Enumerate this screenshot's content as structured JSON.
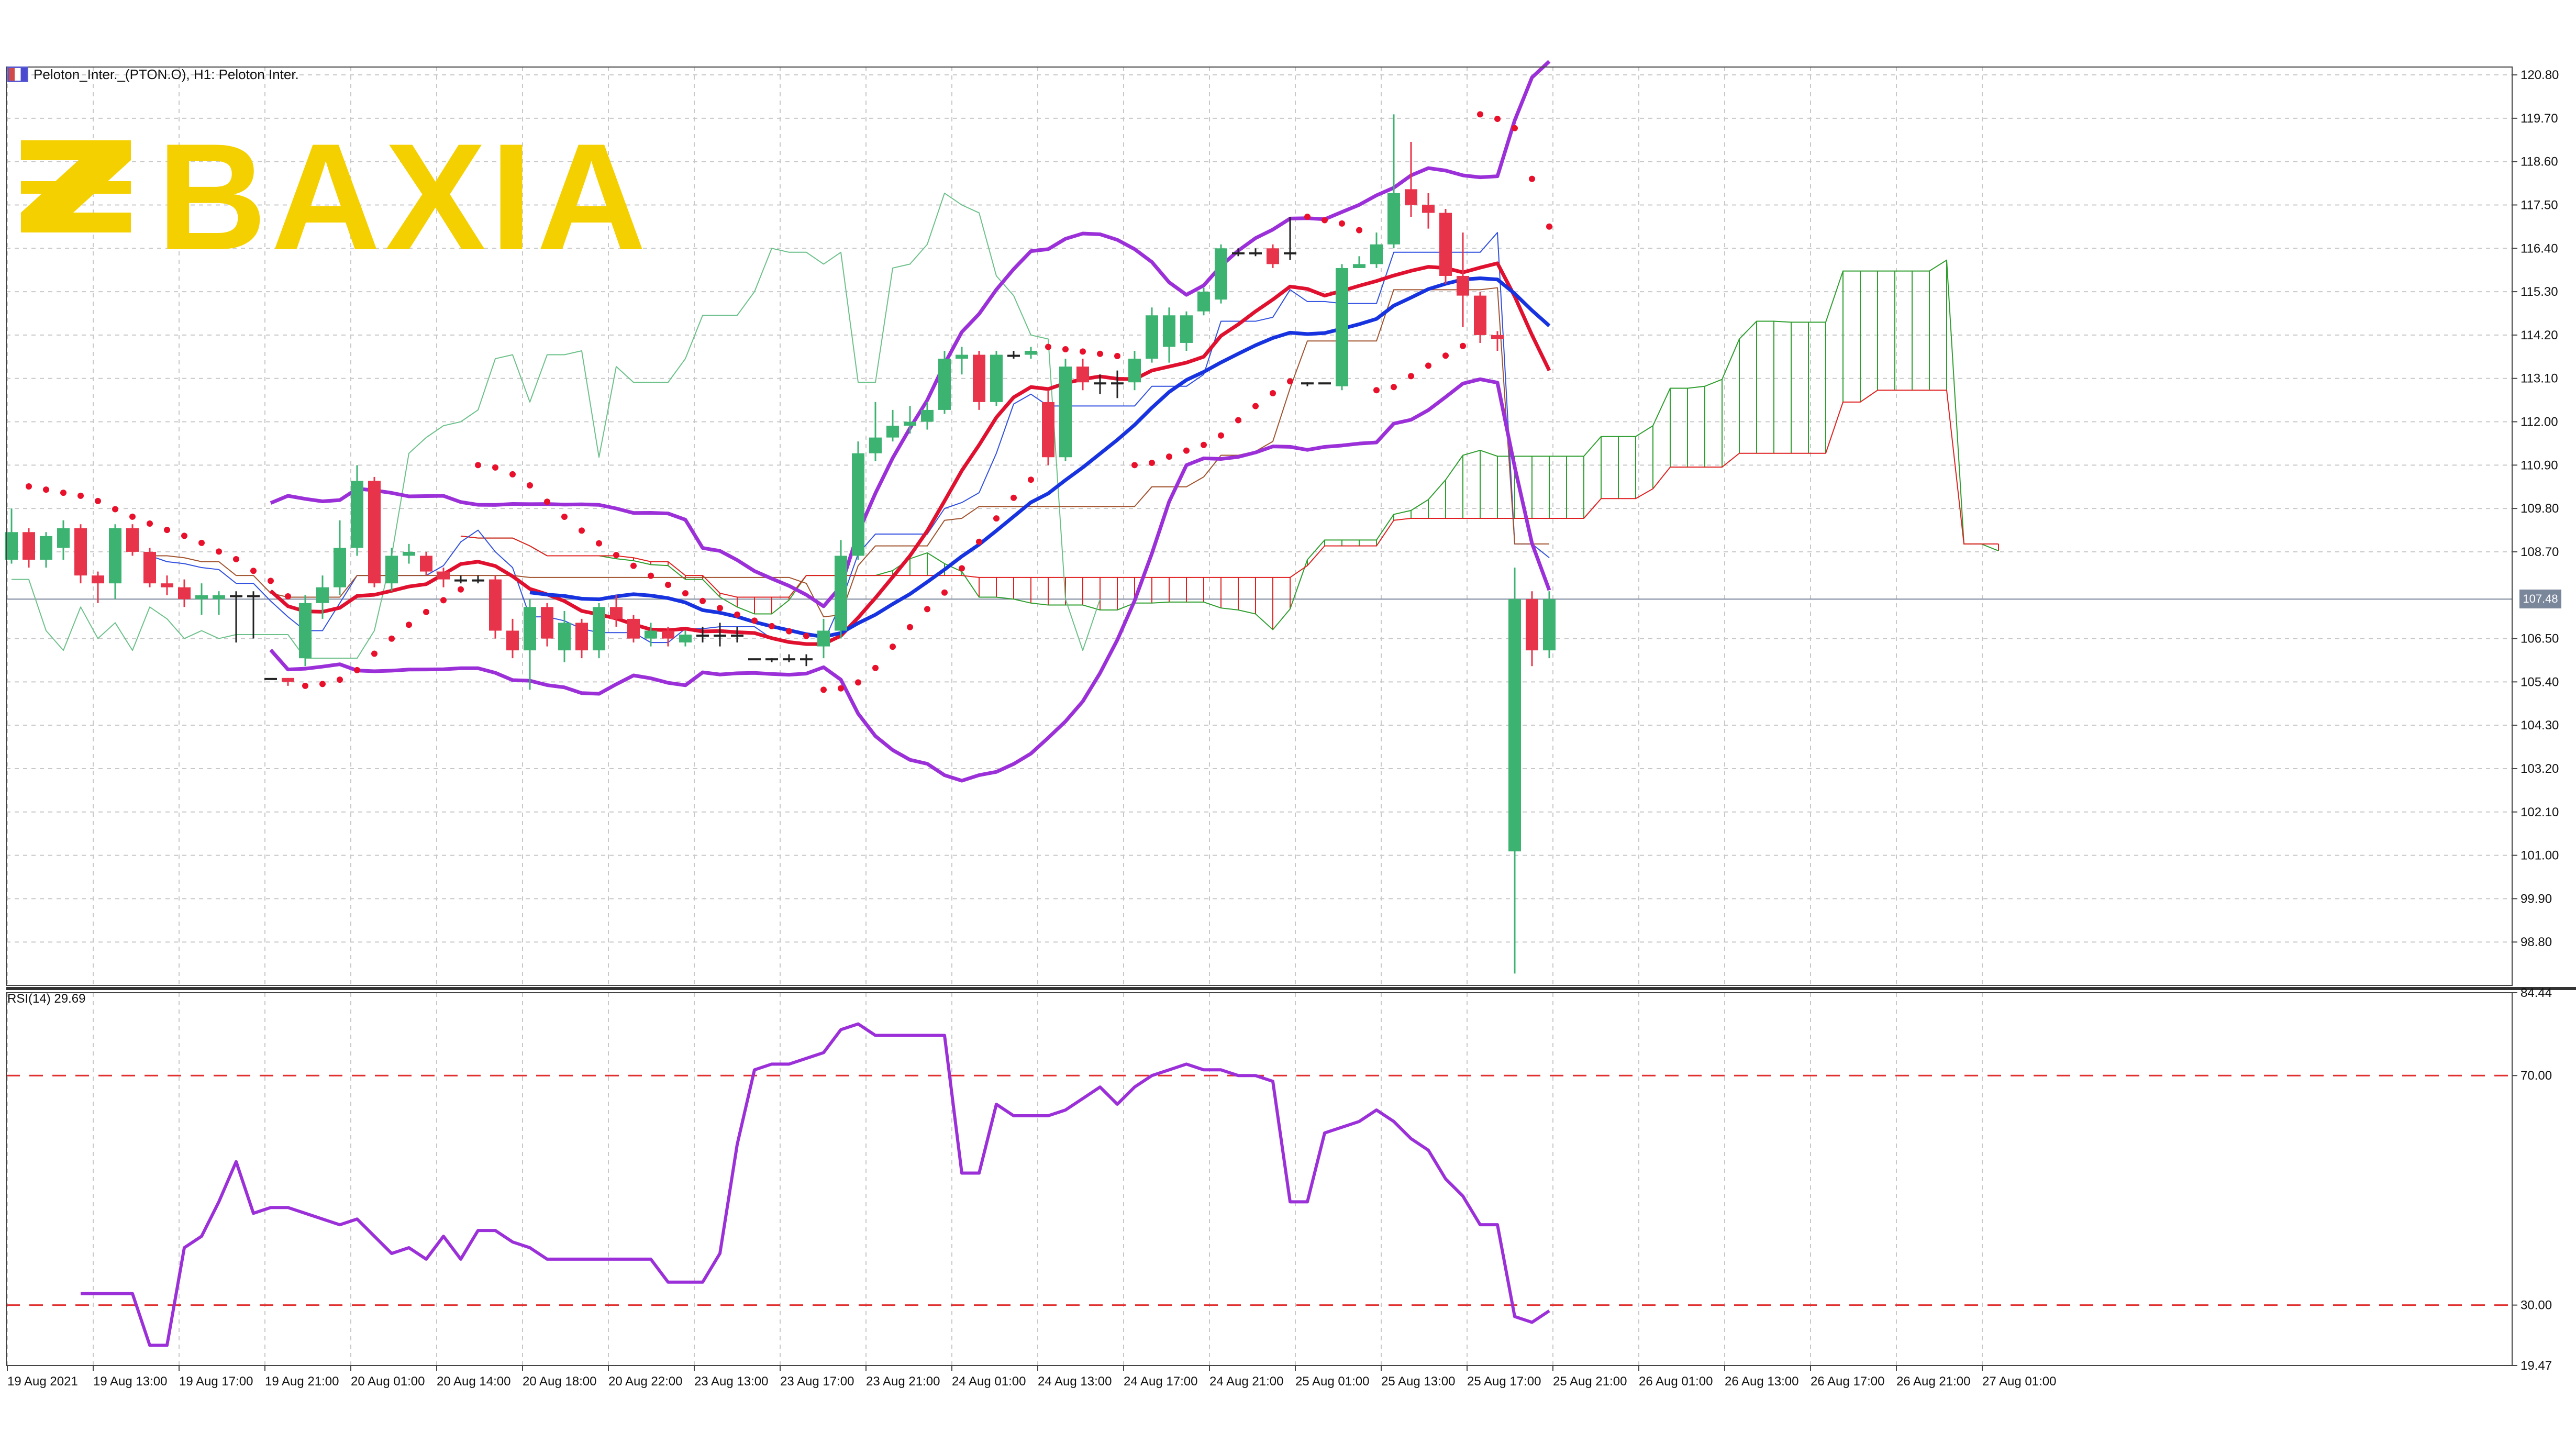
{
  "window": {
    "symbol_header": "Peloton_Inter._(PTON.O), H1:  Peloton Inter.",
    "rsi_label": "RSI(14) 29.69",
    "current_price_tag": "107.48"
  },
  "brand": {
    "logo_text": "BAXIA",
    "color": "#f5d000"
  },
  "colors": {
    "bull": "#3cb371",
    "bear": "#e8344a",
    "ma_red": "#e0102f",
    "ma_blue": "#1733e0",
    "bollinger": "#9b30d9",
    "kumo_green": "#2e9e2e",
    "kumo_red": "#e02020",
    "psar": "#e8102a",
    "rsi": "#9b30d9",
    "rsi_levels": "#e03030"
  },
  "chart_data": [
    {
      "type": "candlestick",
      "title": "Peloton_Inter._(PTON.O), H1:  Peloton Inter.",
      "ylim": [
        97.7,
        121.0
      ],
      "y_ticks": [
        "120.80",
        "119.70",
        "118.60",
        "117.50",
        "116.40",
        "115.30",
        "114.20",
        "113.10",
        "112.00",
        "110.90",
        "109.80",
        "108.70",
        "106.50",
        "105.40",
        "104.30",
        "103.20",
        "102.10",
        "101.00",
        "99.90",
        "98.80"
      ],
      "x_ticks": [
        "19 Aug 2021",
        "19 Aug 13:00",
        "19 Aug 17:00",
        "19 Aug 21:00",
        "20 Aug 01:00",
        "20 Aug 14:00",
        "20 Aug 18:00",
        "20 Aug 22:00",
        "23 Aug 13:00",
        "23 Aug 17:00",
        "23 Aug 21:00",
        "24 Aug 01:00",
        "24 Aug 13:00",
        "24 Aug 17:00",
        "24 Aug 21:00",
        "25 Aug 01:00",
        "25 Aug 13:00",
        "25 Aug 17:00",
        "25 Aug 21:00",
        "26 Aug 01:00",
        "26 Aug 13:00",
        "26 Aug 17:00",
        "26 Aug 21:00",
        "27 Aug 01:00"
      ],
      "candles": [
        [
          108.5,
          109.2,
          109.8,
          108.4
        ],
        [
          109.2,
          108.5,
          109.3,
          108.3
        ],
        [
          108.5,
          109.1,
          109.2,
          108.3
        ],
        [
          108.8,
          109.3,
          109.5,
          108.5
        ],
        [
          109.3,
          108.1,
          109.4,
          107.9
        ],
        [
          108.1,
          107.9,
          108.2,
          107.4
        ],
        [
          107.9,
          109.3,
          109.4,
          107.5
        ],
        [
          109.3,
          108.7,
          109.4,
          108.6
        ],
        [
          108.7,
          107.9,
          108.8,
          107.8
        ],
        [
          107.9,
          107.8,
          108.1,
          107.6
        ],
        [
          107.8,
          107.5,
          108.0,
          107.3
        ],
        [
          107.5,
          107.6,
          107.9,
          107.1
        ],
        [
          107.5,
          107.6,
          107.7,
          107.1
        ],
        [
          107.6,
          107.6,
          107.7,
          106.4
        ],
        [
          107.6,
          107.6,
          107.7,
          106.5
        ],
        [
          105.5,
          105.5,
          105.5,
          105.5
        ],
        [
          105.5,
          105.4,
          105.5,
          105.3
        ],
        [
          106.0,
          107.4,
          107.6,
          105.8
        ],
        [
          107.4,
          107.8,
          108.1,
          107.0
        ],
        [
          107.8,
          108.8,
          109.5,
          107.6
        ],
        [
          108.8,
          110.5,
          110.9,
          108.6
        ],
        [
          110.5,
          107.9,
          110.6,
          107.8
        ],
        [
          107.9,
          108.6,
          108.8,
          107.7
        ],
        [
          108.6,
          108.7,
          108.9,
          108.4
        ],
        [
          108.6,
          108.2,
          108.7,
          108.1
        ],
        [
          108.2,
          108.0,
          108.3,
          107.8
        ],
        [
          108.0,
          108.0,
          108.1,
          107.9
        ],
        [
          108.0,
          108.0,
          108.1,
          107.9
        ],
        [
          108.0,
          106.7,
          108.1,
          106.5
        ],
        [
          106.7,
          106.2,
          107.0,
          106.0
        ],
        [
          106.2,
          107.3,
          107.5,
          105.2
        ],
        [
          107.3,
          106.5,
          107.4,
          106.3
        ],
        [
          106.2,
          106.9,
          107.2,
          105.9
        ],
        [
          106.9,
          106.2,
          107.0,
          106.0
        ],
        [
          106.2,
          107.3,
          107.4,
          106.0
        ],
        [
          107.3,
          107.0,
          107.6,
          106.8
        ],
        [
          107.0,
          106.5,
          107.1,
          106.4
        ],
        [
          106.5,
          106.7,
          106.9,
          106.3
        ],
        [
          106.7,
          106.5,
          106.8,
          106.3
        ],
        [
          106.4,
          106.6,
          106.7,
          106.3
        ],
        [
          106.6,
          106.6,
          106.8,
          106.4
        ],
        [
          106.6,
          106.6,
          106.9,
          106.3
        ],
        [
          106.6,
          106.6,
          106.8,
          106.4
        ],
        [
          106.0,
          106.0,
          106.0,
          106.0
        ],
        [
          106.0,
          106.0,
          106.0,
          105.9
        ],
        [
          106.0,
          106.0,
          106.1,
          105.9
        ],
        [
          106.0,
          106.0,
          106.1,
          105.8
        ],
        [
          106.3,
          106.7,
          107.0,
          106.0
        ],
        [
          106.7,
          108.6,
          109.0,
          106.5
        ],
        [
          108.6,
          111.2,
          111.5,
          108.5
        ],
        [
          111.2,
          111.6,
          112.5,
          111.0
        ],
        [
          111.6,
          111.9,
          112.3,
          111.5
        ],
        [
          111.9,
          112.0,
          112.4,
          111.7
        ],
        [
          112.0,
          112.3,
          112.5,
          111.8
        ],
        [
          112.3,
          113.6,
          113.8,
          112.2
        ],
        [
          113.6,
          113.7,
          113.9,
          113.2
        ],
        [
          113.7,
          112.5,
          113.8,
          112.3
        ],
        [
          112.5,
          113.7,
          113.8,
          112.4
        ],
        [
          113.7,
          113.7,
          113.8,
          113.6
        ],
        [
          113.7,
          113.8,
          113.9,
          113.6
        ],
        [
          112.5,
          111.1,
          112.8,
          110.9
        ],
        [
          111.1,
          113.4,
          113.6,
          111.0
        ],
        [
          113.4,
          113.0,
          113.6,
          112.8
        ],
        [
          113.0,
          113.0,
          113.2,
          112.7
        ],
        [
          113.0,
          113.0,
          113.3,
          112.6
        ],
        [
          113.0,
          113.6,
          113.8,
          112.8
        ],
        [
          113.6,
          114.7,
          114.9,
          113.5
        ],
        [
          113.9,
          114.7,
          114.9,
          113.5
        ],
        [
          114.0,
          114.7,
          114.8,
          113.8
        ],
        [
          114.8,
          115.3,
          115.4,
          114.7
        ],
        [
          115.1,
          116.4,
          116.5,
          115.0
        ],
        [
          116.3,
          116.3,
          116.4,
          116.2
        ],
        [
          116.3,
          116.3,
          116.4,
          116.2
        ],
        [
          116.4,
          116.0,
          116.5,
          115.9
        ],
        [
          116.3,
          116.3,
          117.2,
          116.1
        ],
        [
          113.0,
          113.0,
          113.0,
          112.9
        ],
        [
          113.0,
          113.0,
          113.0,
          113.0
        ],
        [
          112.9,
          115.9,
          116.0,
          112.8
        ],
        [
          115.9,
          116.0,
          116.2,
          115.9
        ],
        [
          116.0,
          116.5,
          116.8,
          115.9
        ],
        [
          116.5,
          117.8,
          119.8,
          116.4
        ],
        [
          117.9,
          117.5,
          119.1,
          117.2
        ],
        [
          117.5,
          117.3,
          117.8,
          116.9
        ],
        [
          117.3,
          115.7,
          117.4,
          115.5
        ],
        [
          115.7,
          115.2,
          116.8,
          114.4
        ],
        [
          115.2,
          114.2,
          115.3,
          114.0
        ],
        [
          114.2,
          114.1,
          114.3,
          113.8
        ],
        [
          101.1,
          107.5,
          108.3,
          98.0
        ],
        [
          107.5,
          106.2,
          107.7,
          105.8
        ],
        [
          106.2,
          107.5,
          107.7,
          106.0
        ]
      ]
    },
    {
      "type": "line",
      "title": "RSI(14) 29.69",
      "ylim": [
        19.47,
        84.44
      ],
      "y_ticks": [
        "84.44",
        "70.00",
        "30.00",
        "19.47"
      ],
      "levels": [
        70,
        30
      ],
      "series": [
        {
          "values": [
            32,
            32,
            32,
            32,
            23,
            23,
            40,
            42,
            48,
            55,
            46,
            47,
            47,
            46,
            45,
            44,
            45,
            42,
            39,
            40,
            38,
            42,
            38,
            43,
            43,
            41,
            40,
            38,
            38,
            38,
            38,
            38,
            38,
            38,
            34,
            34,
            34,
            39,
            58,
            71,
            72,
            72,
            73,
            74,
            78,
            79,
            77,
            77,
            77,
            77,
            77,
            53,
            53,
            65,
            63,
            63,
            63,
            64,
            66,
            68,
            65,
            68,
            70,
            71,
            72,
            71,
            71,
            70,
            70,
            69,
            48,
            48,
            60,
            61,
            62,
            64,
            62,
            59,
            57,
            52,
            49,
            44,
            44,
            28,
            27,
            29
          ]
        }
      ]
    }
  ]
}
